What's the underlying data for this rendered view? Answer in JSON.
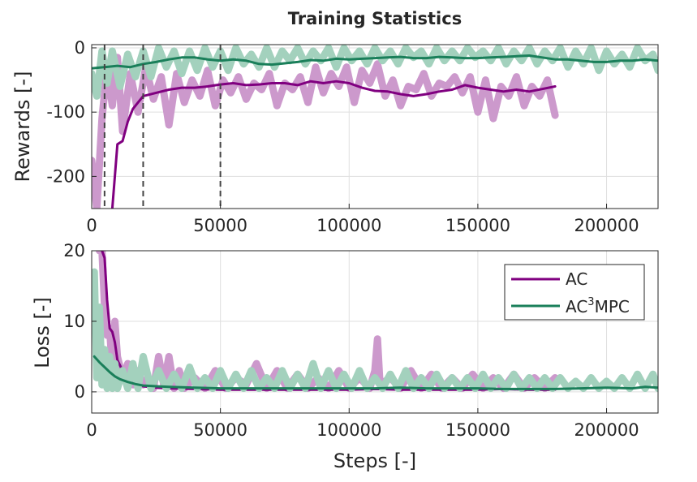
{
  "figure_title": "Training Statistics",
  "colors": {
    "ac": "#800080",
    "ac_raw": "#cc99cc",
    "mpc": "#1a7f5a",
    "mpc_raw": "#a3d1bd",
    "grid": "#dfdfdf",
    "axis": "#262626",
    "vline": "#444444"
  },
  "chart_data": [
    {
      "type": "line",
      "title": "Training Statistics",
      "xlabel": "",
      "ylabel": "Rewards [-]",
      "xlim": [
        0,
        220000
      ],
      "ylim": [
        -250,
        5
      ],
      "xticks": [
        0,
        50000,
        100000,
        150000,
        200000
      ],
      "xtick_labels": [
        "0",
        "50000",
        "100000",
        "150000",
        "200000"
      ],
      "yticks": [
        0,
        -100,
        -200
      ],
      "ytick_labels": [
        "0",
        "-100",
        "-200"
      ],
      "grid": true,
      "vlines": [
        5000,
        20000,
        50000
      ],
      "series": [
        {
          "name": "AC (raw)",
          "style": "raw",
          "x": [
            0,
            2000,
            4000,
            6000,
            8000,
            10000,
            12000,
            15000,
            18000,
            21000,
            24000,
            27000,
            30000,
            33000,
            36000,
            39000,
            42000,
            45000,
            48000,
            51000,
            54000,
            57000,
            60000,
            63000,
            66000,
            69000,
            72000,
            75000,
            78000,
            81000,
            84000,
            87000,
            90000,
            93000,
            96000,
            99000,
            102000,
            105000,
            108000,
            111000,
            114000,
            117000,
            120000,
            123000,
            126000,
            129000,
            132000,
            135000,
            138000,
            141000,
            144000,
            147000,
            150000,
            153000,
            156000,
            159000,
            162000,
            165000,
            168000,
            171000,
            174000,
            177000,
            180000
          ],
          "y": [
            -175,
            -250,
            -110,
            -30,
            -90,
            -15,
            -130,
            -40,
            -100,
            -30,
            -80,
            -45,
            -120,
            -40,
            -85,
            -50,
            -75,
            -35,
            -90,
            -50,
            -70,
            -45,
            -80,
            -55,
            -65,
            -40,
            -90,
            -55,
            -65,
            -45,
            -85,
            -30,
            -70,
            -40,
            -60,
            -30,
            -85,
            -35,
            -55,
            -25,
            -75,
            -50,
            -90,
            -60,
            -65,
            -40,
            -75,
            -55,
            -60,
            -45,
            -70,
            -45,
            -100,
            -50,
            -110,
            -60,
            -75,
            -45,
            -90,
            -60,
            -75,
            -50,
            -105
          ]
        },
        {
          "name": "AC",
          "style": "smooth",
          "x": [
            8000,
            10000,
            12000,
            14000,
            16000,
            18000,
            20000,
            25000,
            30000,
            35000,
            40000,
            45000,
            50000,
            55000,
            60000,
            65000,
            70000,
            75000,
            80000,
            85000,
            90000,
            95000,
            100000,
            105000,
            110000,
            115000,
            120000,
            125000,
            130000,
            135000,
            140000,
            145000,
            150000,
            155000,
            160000,
            165000,
            170000,
            175000,
            180000
          ],
          "y": [
            -250,
            -150,
            -145,
            -115,
            -95,
            -85,
            -75,
            -70,
            -65,
            -62,
            -62,
            -60,
            -57,
            -55,
            -58,
            -57,
            -55,
            -55,
            -58,
            -52,
            -55,
            -52,
            -55,
            -62,
            -67,
            -68,
            -72,
            -75,
            -72,
            -68,
            -65,
            -58,
            -62,
            -65,
            -68,
            -65,
            -68,
            -64,
            -60
          ]
        },
        {
          "name": "AC³MPC (raw)",
          "style": "raw",
          "x": [
            0,
            2000,
            4000,
            6000,
            8000,
            11000,
            14000,
            17000,
            20000,
            23000,
            26000,
            29000,
            32000,
            35000,
            38000,
            41000,
            44000,
            47000,
            50000,
            53000,
            56000,
            59000,
            62000,
            65000,
            68000,
            71000,
            74000,
            77000,
            80000,
            83000,
            86000,
            89000,
            92000,
            95000,
            98000,
            101000,
            104000,
            107000,
            110000,
            113000,
            116000,
            119000,
            122000,
            125000,
            128000,
            131000,
            134000,
            137000,
            140000,
            143000,
            146000,
            149000,
            152000,
            155000,
            158000,
            161000,
            164000,
            167000,
            170000,
            173000,
            176000,
            179000,
            182000,
            185000,
            188000,
            191000,
            194000,
            197000,
            200000,
            203000,
            206000,
            209000,
            212000,
            215000,
            218000,
            220000
          ],
          "y": [
            -40,
            -75,
            -5,
            -55,
            -5,
            -60,
            -10,
            -45,
            -5,
            -45,
            0,
            -30,
            -5,
            -40,
            -5,
            -35,
            0,
            -30,
            -5,
            -35,
            0,
            -25,
            -10,
            -30,
            0,
            -30,
            -5,
            -20,
            0,
            -25,
            -5,
            -20,
            0,
            -30,
            0,
            -20,
            -5,
            -25,
            0,
            -20,
            -5,
            -25,
            0,
            -15,
            -5,
            -25,
            0,
            -20,
            -5,
            -20,
            0,
            -15,
            -5,
            -20,
            0,
            -25,
            -5,
            -20,
            0,
            -25,
            -5,
            -20,
            0,
            -30,
            -5,
            -25,
            0,
            -35,
            -5,
            -25,
            -10,
            -30,
            0,
            -20,
            -10,
            -35
          ]
        },
        {
          "name": "AC³MPC",
          "style": "smooth",
          "x": [
            0,
            5000,
            10000,
            15000,
            20000,
            25000,
            30000,
            35000,
            40000,
            45000,
            50000,
            55000,
            60000,
            65000,
            70000,
            75000,
            80000,
            85000,
            90000,
            95000,
            100000,
            105000,
            110000,
            115000,
            120000,
            125000,
            130000,
            135000,
            140000,
            145000,
            150000,
            155000,
            160000,
            165000,
            170000,
            175000,
            180000,
            185000,
            190000,
            195000,
            200000,
            205000,
            210000,
            215000,
            220000
          ],
          "y": [
            -32,
            -30,
            -28,
            -30,
            -25,
            -22,
            -18,
            -15,
            -15,
            -18,
            -20,
            -18,
            -20,
            -25,
            -26,
            -24,
            -22,
            -19,
            -20,
            -17,
            -18,
            -17,
            -16,
            -15,
            -14,
            -16,
            -16,
            -14,
            -15,
            -16,
            -16,
            -15,
            -14,
            -13,
            -12,
            -15,
            -18,
            -18,
            -20,
            -22,
            -22,
            -20,
            -20,
            -18,
            -20
          ]
        }
      ]
    },
    {
      "type": "line",
      "title": "",
      "xlabel": "Steps [-]",
      "ylabel": "Loss [-]",
      "xlim": [
        0,
        220000
      ],
      "ylim": [
        -3,
        20
      ],
      "xticks": [
        0,
        50000,
        100000,
        150000,
        200000
      ],
      "xtick_labels": [
        "0",
        "50000",
        "100000",
        "150000",
        "200000"
      ],
      "yticks": [
        0,
        10,
        20
      ],
      "ytick_labels": [
        "0",
        "10",
        "20"
      ],
      "grid": true,
      "legend": {
        "location": "top-right",
        "entries": [
          {
            "series": "AC",
            "label": "AC"
          },
          {
            "series": "AC³MPC",
            "label_base": "AC",
            "label_sup": "3",
            "label_tail": "MPC"
          }
        ]
      },
      "series": [
        {
          "name": "AC (raw)",
          "style": "raw",
          "x": [
            3000,
            4000,
            5000,
            6000,
            7000,
            8000,
            9000,
            10000,
            12000,
            14000,
            16000,
            18000,
            20000,
            22000,
            24000,
            26000,
            28000,
            30000,
            32000,
            34000,
            36000,
            40000,
            44000,
            48000,
            52000,
            56000,
            60000,
            64000,
            68000,
            72000,
            76000,
            80000,
            84000,
            88000,
            92000,
            96000,
            100000,
            104000,
            108000,
            110000,
            111000,
            112000,
            116000,
            120000,
            124000,
            128000,
            132000,
            136000,
            140000,
            144000,
            148000,
            152000,
            156000,
            160000,
            164000,
            168000,
            172000,
            176000,
            180000
          ],
          "y": [
            20,
            20,
            12,
            8,
            9,
            3,
            10,
            5,
            2,
            4,
            1,
            3,
            1,
            2,
            0.5,
            5,
            1,
            5,
            0.5,
            3,
            0.5,
            2,
            0.5,
            3,
            0.5,
            2,
            1,
            4,
            0.5,
            3,
            0.5,
            2.5,
            0.5,
            2,
            0.5,
            3,
            0.5,
            2,
            0.5,
            3,
            7.5,
            1,
            2,
            0.5,
            3,
            0.5,
            2.5,
            0.5,
            2,
            0.5,
            2.5,
            0.5,
            2,
            0.5,
            2.5,
            0.5,
            2,
            0.5,
            2
          ]
        },
        {
          "name": "AC",
          "style": "smooth",
          "x": [
            4000,
            5000,
            6000,
            7000,
            8000,
            9000,
            10000,
            12000,
            14000,
            16000,
            18000,
            20000,
            25000,
            30000,
            40000,
            50000,
            60000,
            70000,
            80000,
            90000,
            100000,
            110000,
            120000,
            130000,
            140000,
            150000,
            160000,
            170000,
            180000
          ],
          "y": [
            20,
            19,
            13,
            9,
            8.5,
            7,
            4.5,
            3,
            2.2,
            1.5,
            1,
            0.8,
            0.6,
            0.5,
            0.4,
            0.3,
            0.3,
            0.3,
            0.3,
            0.3,
            0.3,
            0.4,
            0.3,
            0.3,
            0.3,
            0.3,
            0.4,
            0.3,
            0.3
          ]
        },
        {
          "name": "AC³MPC (raw)",
          "style": "raw",
          "x": [
            1000,
            2000,
            3000,
            4000,
            5000,
            6000,
            7000,
            8000,
            9000,
            10000,
            12000,
            14000,
            16000,
            18000,
            20000,
            23000,
            26000,
            29000,
            32000,
            35000,
            38000,
            41000,
            44000,
            47000,
            50000,
            53000,
            56000,
            59000,
            62000,
            65000,
            68000,
            71000,
            74000,
            77000,
            80000,
            83000,
            86000,
            89000,
            92000,
            95000,
            98000,
            101000,
            104000,
            107000,
            110000,
            113000,
            116000,
            119000,
            122000,
            125000,
            128000,
            131000,
            134000,
            137000,
            140000,
            143000,
            146000,
            149000,
            152000,
            155000,
            158000,
            161000,
            164000,
            167000,
            170000,
            173000,
            176000,
            179000,
            182000,
            185000,
            188000,
            191000,
            194000,
            197000,
            200000,
            203000,
            206000,
            209000,
            212000,
            215000,
            218000,
            220000
          ],
          "y": [
            17,
            2,
            12,
            1,
            6,
            0.5,
            5,
            0.5,
            4,
            0.5,
            3,
            0.5,
            4,
            0.5,
            5,
            0.5,
            3,
            0.5,
            2.5,
            0.5,
            3.5,
            0.5,
            2,
            0.5,
            3,
            0.5,
            2.5,
            0.5,
            3,
            0.5,
            2,
            0.5,
            3,
            0.5,
            2.5,
            0.5,
            4,
            0.5,
            3,
            0.5,
            2.5,
            0.5,
            3,
            0.5,
            2,
            0.5,
            2.5,
            0.5,
            3,
            0.5,
            2,
            0.5,
            2.5,
            0.5,
            2,
            0.5,
            2,
            0.5,
            2.5,
            0.5,
            2,
            0.5,
            2.5,
            0.5,
            2,
            0.5,
            2,
            0.5,
            2,
            0.5,
            1.5,
            0.5,
            2,
            0.5,
            1.5,
            0.5,
            2,
            0.5,
            2.5,
            0.5,
            2.5,
            0.5
          ]
        },
        {
          "name": "AC³MPC",
          "style": "smooth",
          "x": [
            1000,
            3000,
            5000,
            7000,
            9000,
            11000,
            14000,
            17000,
            20000,
            25000,
            30000,
            40000,
            50000,
            60000,
            70000,
            80000,
            90000,
            100000,
            110000,
            120000,
            130000,
            140000,
            150000,
            160000,
            170000,
            180000,
            190000,
            200000,
            210000,
            215000,
            220000
          ],
          "y": [
            5,
            4.2,
            3.5,
            2.8,
            2.2,
            1.8,
            1.4,
            1.1,
            0.9,
            0.8,
            0.7,
            0.6,
            0.5,
            0.5,
            0.5,
            0.5,
            0.5,
            0.5,
            0.5,
            0.6,
            0.5,
            0.5,
            0.5,
            0.4,
            0.4,
            0.4,
            0.5,
            0.6,
            0.5,
            0.7,
            0.6
          ]
        }
      ]
    }
  ]
}
